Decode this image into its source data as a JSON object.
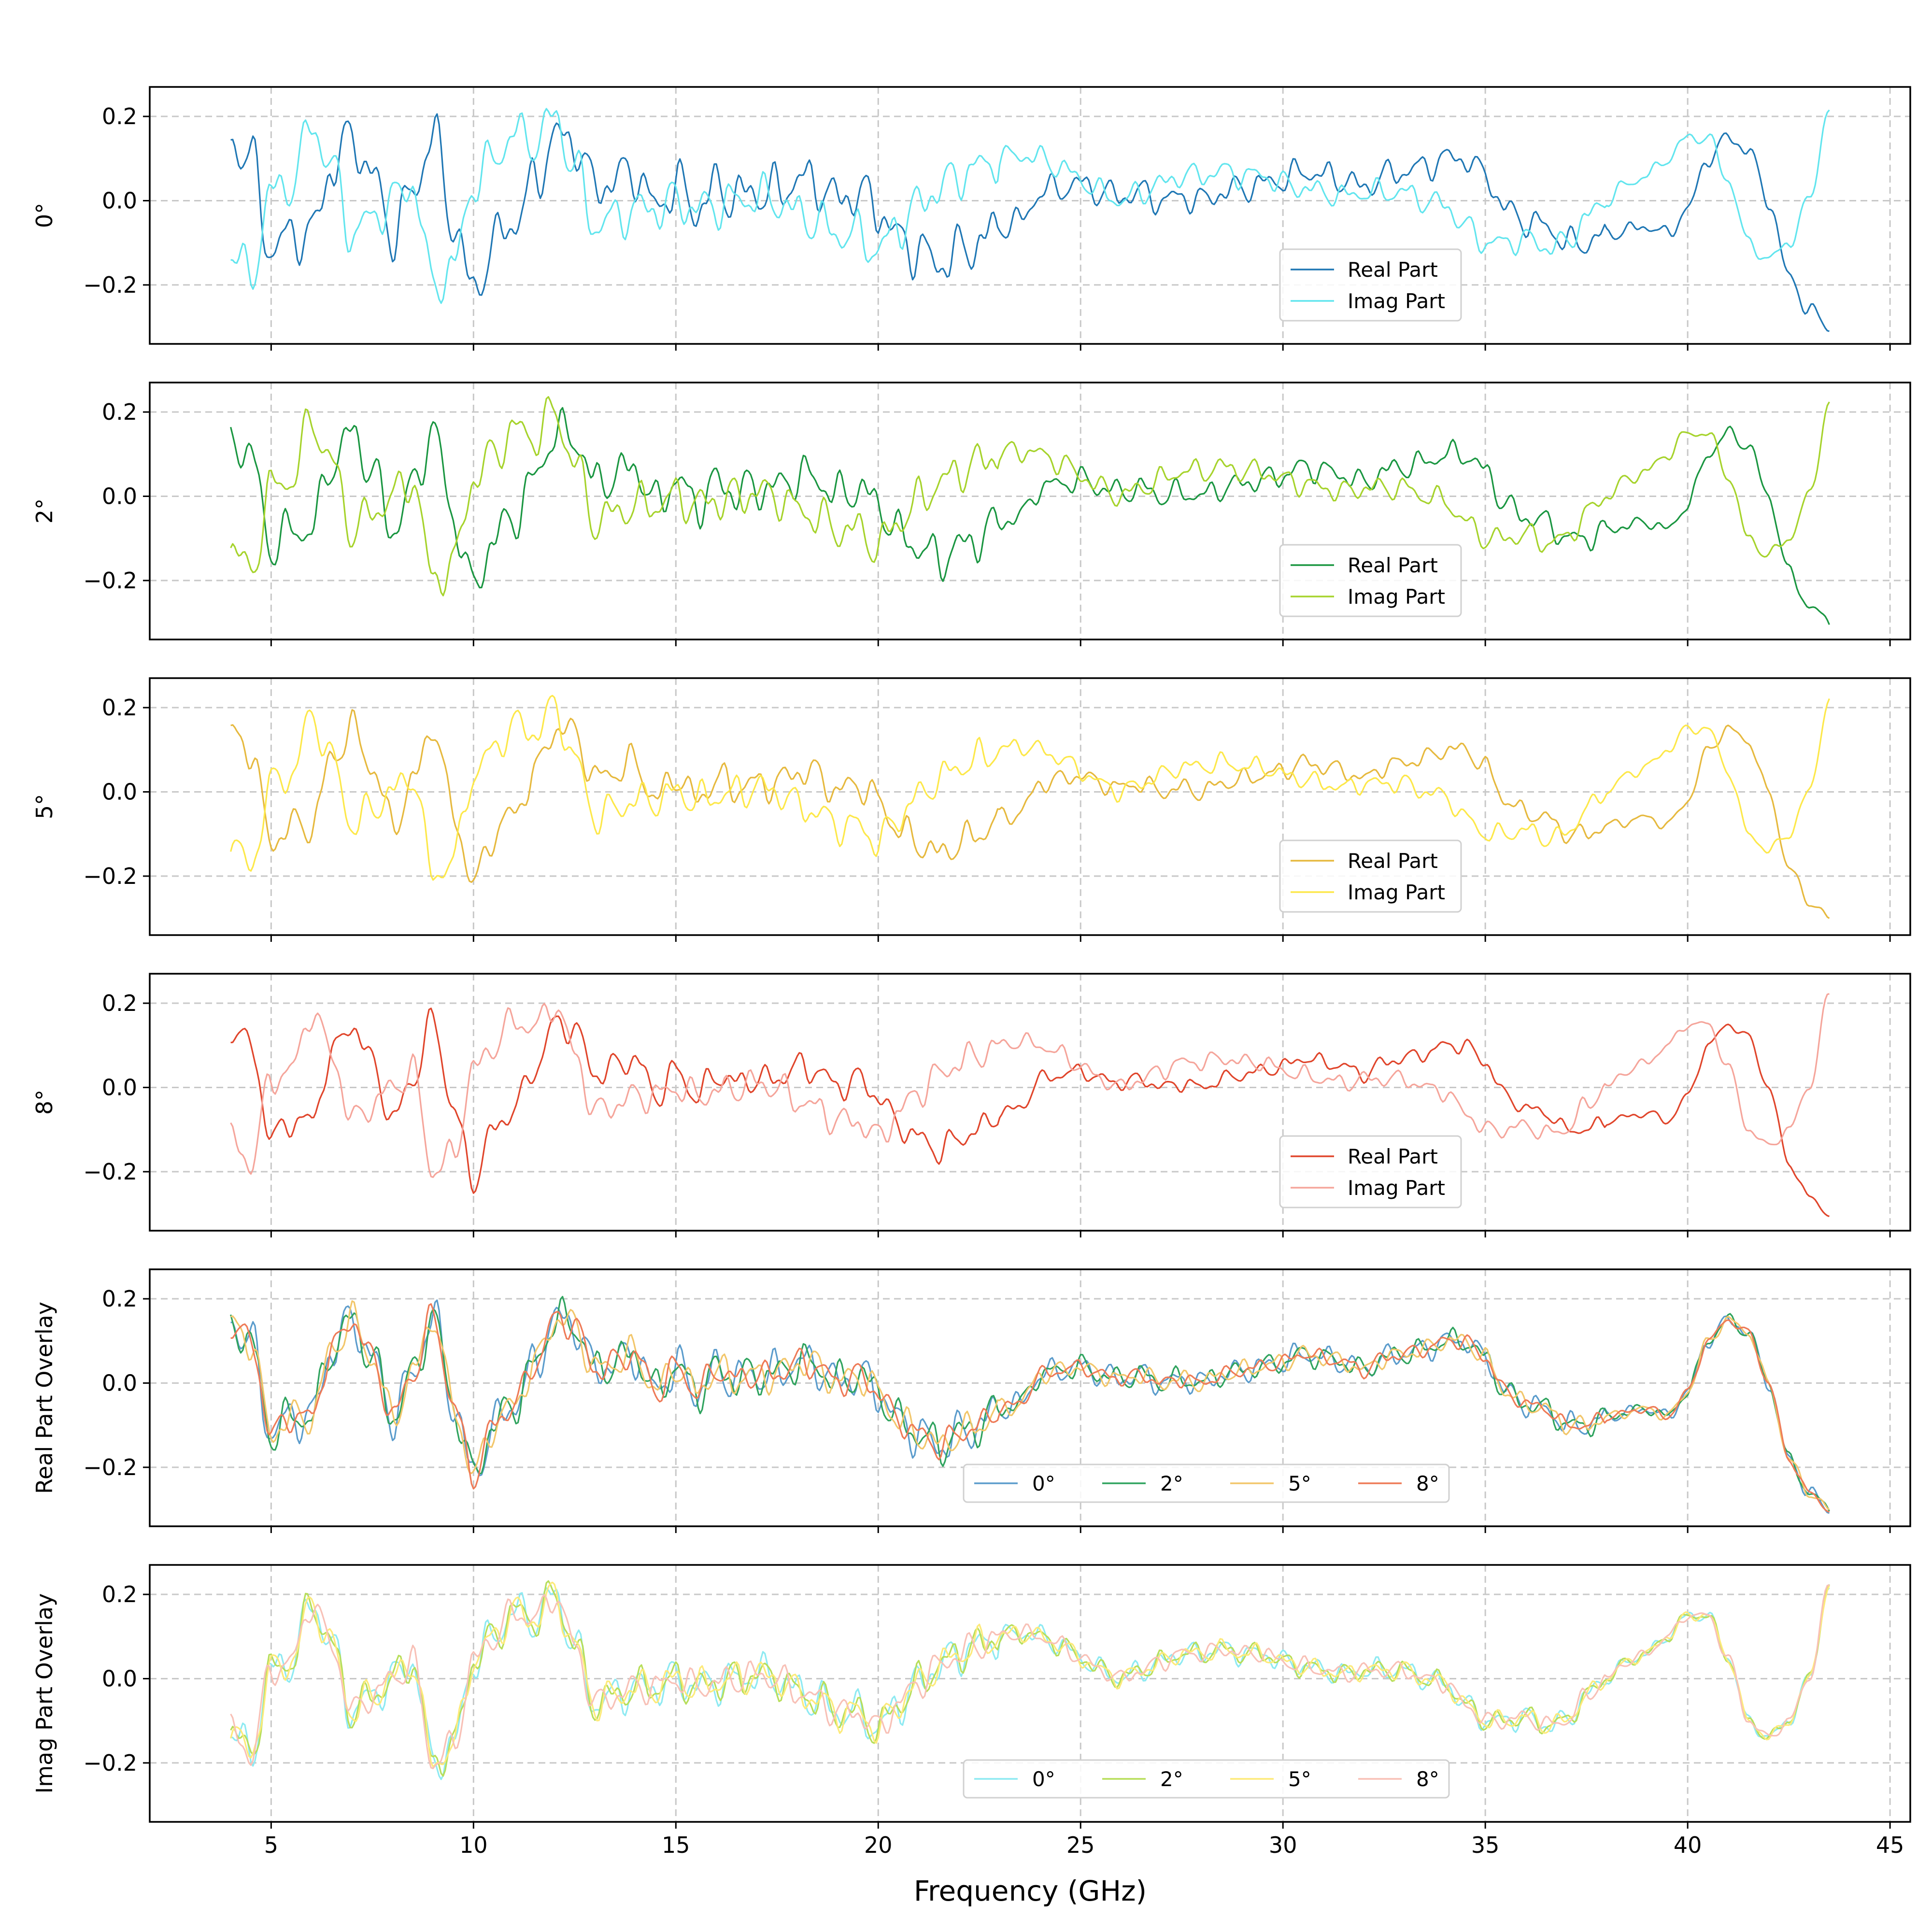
{
  "chart_data": {
    "type": "line",
    "xlabel": "Frequency (GHz)",
    "xlim": [
      2,
      45.5
    ],
    "xticks": [
      5,
      10,
      15,
      20,
      25,
      30,
      35,
      40,
      45
    ],
    "ylim": [
      -0.34,
      0.27
    ],
    "yticks": [
      -0.2,
      0.0,
      0.2
    ],
    "ytick_labels": [
      "−0.2",
      "0.0",
      "0.2"
    ],
    "grid": true,
    "x_start": 4.0,
    "x_end": 43.5,
    "anchor_x": [
      4.0,
      4.5,
      5.0,
      5.5,
      6.0,
      6.5,
      7.0,
      7.5,
      8.0,
      8.5,
      9.0,
      9.5,
      10.0,
      10.5,
      11.0,
      11.5,
      12.0,
      12.5,
      13.0,
      13.5,
      14.0,
      14.5,
      15.0,
      15.5,
      16.0,
      16.5,
      17.0,
      17.5,
      18.0,
      18.5,
      19.0,
      19.5,
      20.0,
      20.5,
      21.0,
      21.5,
      22.0,
      22.5,
      23.0,
      23.5,
      24.0,
      24.5,
      25.0,
      25.5,
      26.0,
      26.5,
      27.0,
      27.5,
      28.0,
      28.5,
      29.0,
      29.5,
      30.0,
      30.5,
      31.0,
      31.5,
      32.0,
      32.5,
      33.0,
      33.5,
      34.0,
      34.5,
      35.0,
      35.5,
      36.0,
      36.5,
      37.0,
      37.5,
      38.0,
      38.5,
      39.0,
      39.5,
      40.0,
      40.5,
      41.0,
      41.5,
      42.0,
      42.5,
      43.0,
      43.5
    ],
    "real_base": [
      0.14,
      0.1,
      -0.12,
      -0.08,
      -0.08,
      0.08,
      0.15,
      0.06,
      -0.08,
      0.02,
      0.16,
      -0.05,
      -0.22,
      -0.1,
      -0.05,
      0.04,
      0.15,
      0.14,
      0.03,
      0.05,
      0.07,
      -0.02,
      0.04,
      -0.02,
      0.03,
      0.01,
      0.02,
      0.02,
      0.05,
      0.04,
      0.0,
      0.02,
      -0.02,
      -0.09,
      -0.12,
      -0.15,
      -0.12,
      -0.1,
      -0.06,
      -0.05,
      0.02,
      0.03,
      0.04,
      0.02,
      0.01,
      0.02,
      0.0,
      0.01,
      0.0,
      0.02,
      0.03,
      0.04,
      0.05,
      0.07,
      0.06,
      0.05,
      0.03,
      0.06,
      0.07,
      0.08,
      0.1,
      0.1,
      0.06,
      -0.02,
      -0.05,
      -0.06,
      -0.1,
      -0.1,
      -0.08,
      -0.07,
      -0.06,
      -0.08,
      -0.02,
      0.1,
      0.15,
      0.12,
      0.0,
      -0.18,
      -0.26,
      -0.3
    ],
    "imag_base": [
      -0.12,
      -0.18,
      0.02,
      0.04,
      0.18,
      0.08,
      -0.08,
      -0.04,
      0.0,
      0.04,
      -0.2,
      -0.16,
      0.04,
      0.1,
      0.16,
      0.14,
      0.2,
      0.08,
      -0.06,
      -0.04,
      -0.02,
      -0.02,
      0.0,
      -0.02,
      -0.01,
      0.0,
      0.01,
      0.0,
      -0.03,
      -0.05,
      -0.08,
      -0.08,
      -0.12,
      -0.06,
      -0.01,
      0.03,
      0.06,
      0.08,
      0.1,
      0.11,
      0.1,
      0.08,
      0.05,
      0.02,
      0.0,
      0.02,
      0.04,
      0.06,
      0.06,
      0.07,
      0.06,
      0.06,
      0.04,
      0.03,
      0.02,
      0.01,
      0.02,
      0.02,
      0.02,
      0.0,
      -0.01,
      -0.06,
      -0.1,
      -0.1,
      -0.09,
      -0.11,
      -0.1,
      -0.04,
      0.0,
      0.04,
      0.06,
      0.1,
      0.15,
      0.15,
      0.05,
      -0.1,
      -0.14,
      -0.1,
      0.0,
      0.22
    ],
    "panels": [
      {
        "ylabel": "0°",
        "legend": {
          "ncol": 1
        },
        "series": [
          {
            "name": "Real Part",
            "color": "#1f77b4",
            "base": "real",
            "ripple": 0.075,
            "seed": 11
          },
          {
            "name": "Imag Part",
            "color": "#62e5ee",
            "base": "imag",
            "ripple": 0.065,
            "seed": 23
          }
        ]
      },
      {
        "ylabel": "2°",
        "legend": {
          "ncol": 1
        },
        "series": [
          {
            "name": "Real Part",
            "color": "#1a9641",
            "base": "real",
            "ripple": 0.065,
            "seed": 37
          },
          {
            "name": "Imag Part",
            "color": "#a6d32c",
            "base": "imag",
            "ripple": 0.06,
            "seed": 41
          }
        ]
      },
      {
        "ylabel": "5°",
        "legend": {
          "ncol": 1
        },
        "series": [
          {
            "name": "Real Part",
            "color": "#e6b93e",
            "base": "real",
            "ripple": 0.05,
            "seed": 53
          },
          {
            "name": "Imag Part",
            "color": "#fde84a",
            "base": "imag",
            "ripple": 0.05,
            "seed": 59
          }
        ]
      },
      {
        "ylabel": "8°",
        "legend": {
          "ncol": 1
        },
        "series": [
          {
            "name": "Real Part",
            "color": "#e0452b",
            "base": "real",
            "ripple": 0.04,
            "seed": 67
          },
          {
            "name": "Imag Part",
            "color": "#f5a59b",
            "base": "imag",
            "ripple": 0.045,
            "seed": 71
          }
        ]
      },
      {
        "ylabel": "Real Part Overlay",
        "legend": {
          "ncol": 4
        },
        "series": [
          {
            "name": "0°",
            "color": "#5b9ccc",
            "base": "real",
            "ripple": 0.065,
            "seed": 11
          },
          {
            "name": "2°",
            "color": "#2fa35e",
            "base": "real",
            "ripple": 0.06,
            "seed": 37
          },
          {
            "name": "5°",
            "color": "#f2c66a",
            "base": "real",
            "ripple": 0.05,
            "seed": 53
          },
          {
            "name": "8°",
            "color": "#ee7a57",
            "base": "real",
            "ripple": 0.04,
            "seed": 67
          }
        ]
      },
      {
        "ylabel": "Imag Part Overlay",
        "legend": {
          "ncol": 4
        },
        "series": [
          {
            "name": "0°",
            "color": "#8eeaf2",
            "base": "imag",
            "ripple": 0.06,
            "seed": 23
          },
          {
            "name": "2°",
            "color": "#b7de5a",
            "base": "imag",
            "ripple": 0.055,
            "seed": 41
          },
          {
            "name": "5°",
            "color": "#fdea7a",
            "base": "imag",
            "ripple": 0.05,
            "seed": 59
          },
          {
            "name": "8°",
            "color": "#f8c0b6",
            "base": "imag",
            "ripple": 0.045,
            "seed": 71
          }
        ]
      }
    ]
  }
}
